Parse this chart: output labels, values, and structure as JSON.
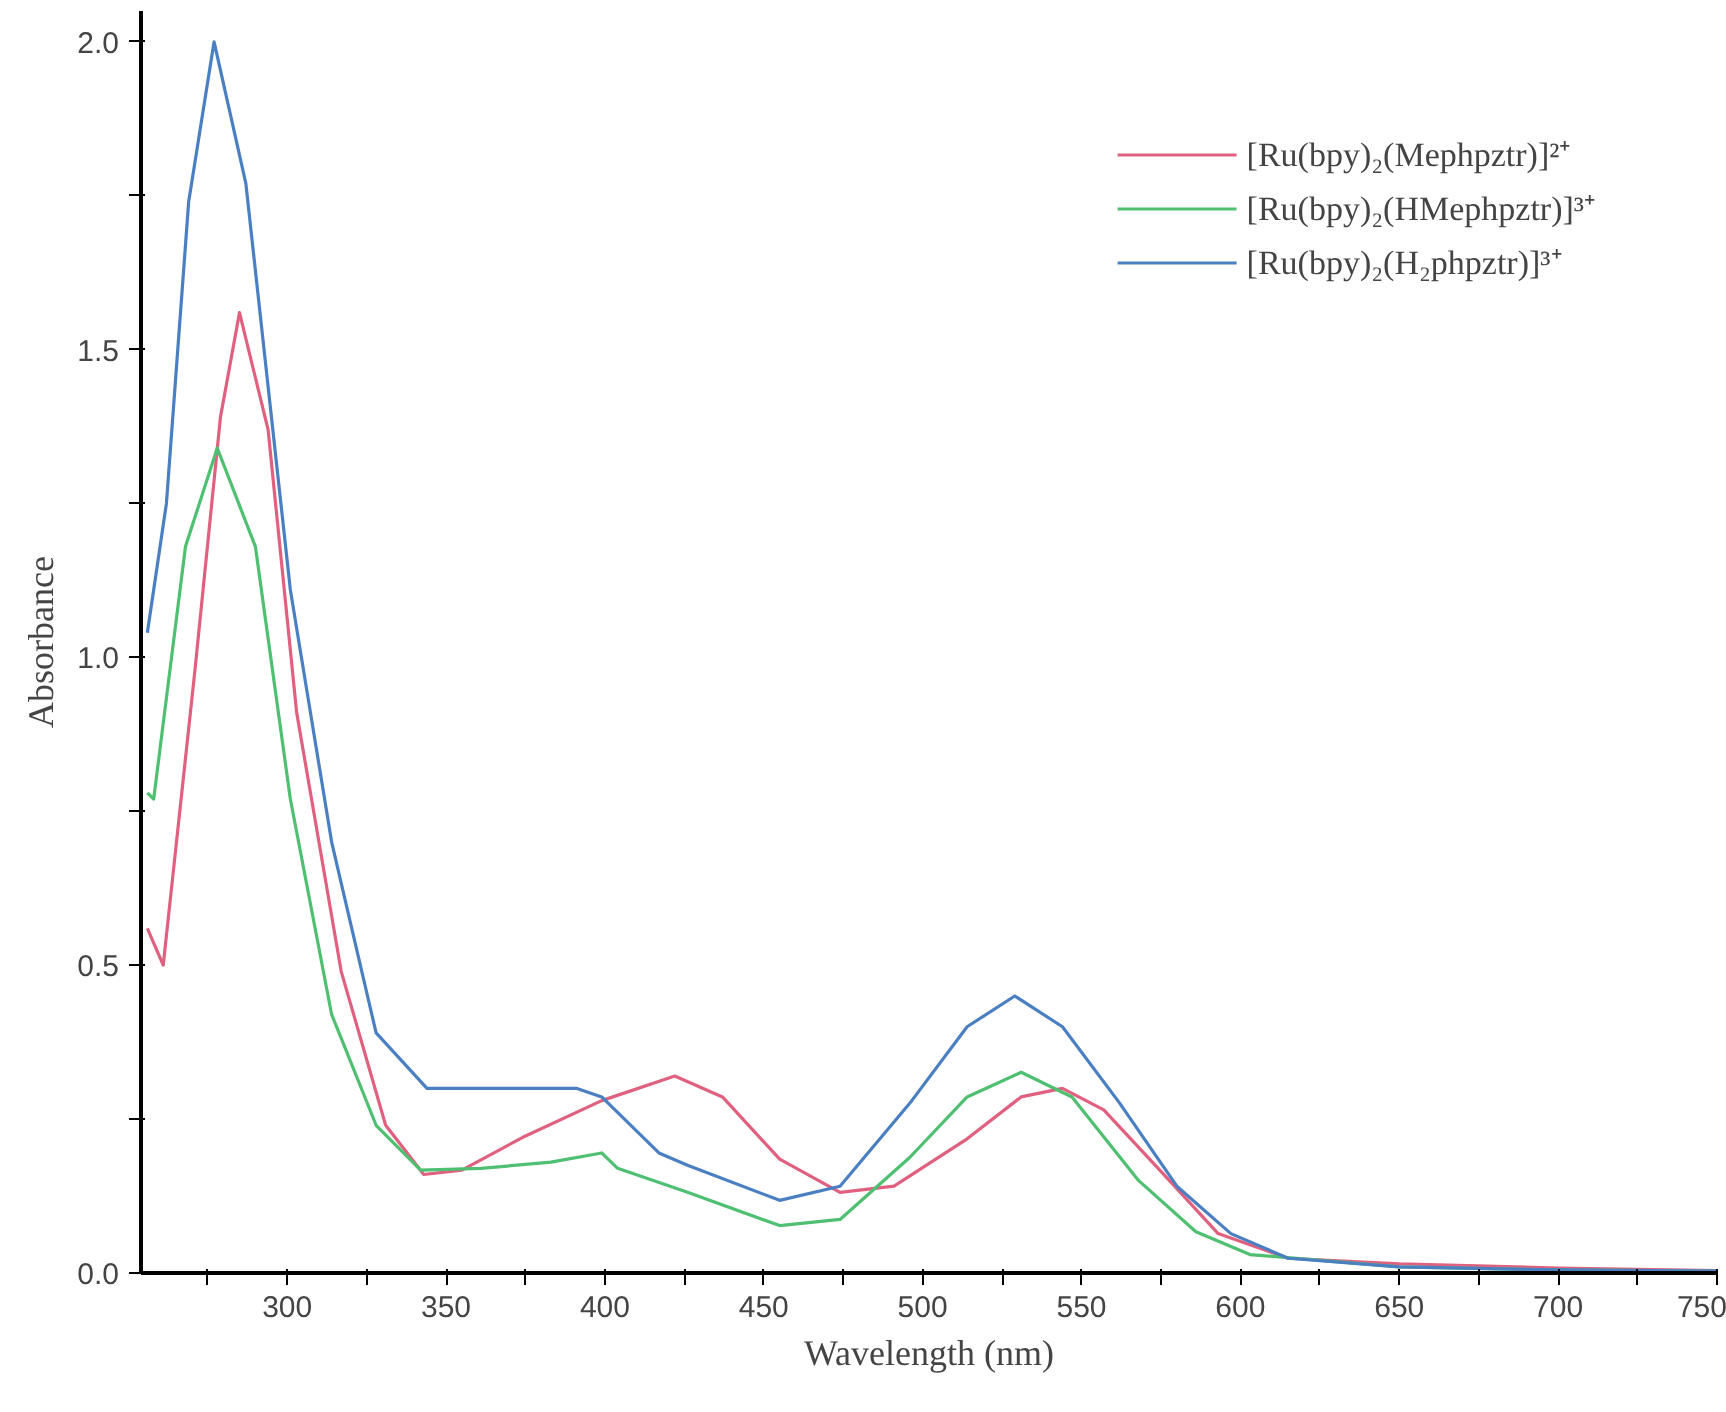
{
  "chart_data": {
    "type": "line",
    "xlabel": "Wavelength (nm)",
    "ylabel": "Absorbance",
    "xlim": [
      254,
      750
    ],
    "ylim": [
      0,
      2.05
    ],
    "xticks": [
      {
        "value": 275,
        "label": null
      },
      300,
      {
        "value": 325,
        "label": null
      },
      350,
      {
        "value": 375,
        "label": null
      },
      400,
      {
        "value": 425,
        "label": null
      },
      450,
      {
        "value": 475,
        "label": null
      },
      500,
      {
        "value": 525,
        "label": null
      },
      550,
      {
        "value": 575,
        "label": null
      },
      600,
      {
        "value": 625,
        "label": null
      },
      650,
      {
        "value": 675,
        "label": null
      },
      700,
      {
        "value": 725,
        "label": null
      },
      750
    ],
    "yticks": [
      {
        "value": 0,
        "label": "0.0"
      },
      {
        "value": 0.25,
        "label": null
      },
      {
        "value": 0.5,
        "label": "0.5"
      },
      {
        "value": 0.75,
        "label": null
      },
      {
        "value": 1,
        "label": "1.0"
      },
      {
        "value": 1.25,
        "label": null
      },
      {
        "value": 1.5,
        "label": "1.5"
      },
      {
        "value": 1.75,
        "label": null
      },
      {
        "value": 2,
        "label": "2.0"
      }
    ],
    "grid": false,
    "legend": "top right",
    "marker": "none",
    "line_style": "solid",
    "series": [
      {
        "name": "[Ru(bpy)₂(Mephpztr)]²⁺",
        "color": "#e0607f",
        "x": [
          256,
          261,
          271,
          279,
          285,
          294,
          303,
          317,
          331,
          343,
          355,
          374,
          399,
          422,
          437,
          455,
          474,
          491,
          514,
          531,
          544,
          557,
          575,
          593,
          615,
          650,
          700,
          750
        ],
        "values": [
          0.56,
          0.5,
          0.98,
          1.39,
          1.56,
          1.37,
          0.91,
          0.49,
          0.24,
          0.16,
          0.167,
          0.22,
          0.28,
          0.32,
          0.286,
          0.185,
          0.131,
          0.141,
          0.218,
          0.286,
          0.3,
          0.265,
          0.165,
          0.064,
          0.024,
          0.015,
          0.008,
          0.004
        ]
      },
      {
        "name": "[Ru(bpy)₂(HMephpztr)]³⁺",
        "color": "#4fbf72",
        "x": [
          256,
          258,
          268,
          278,
          290,
          301,
          314,
          328,
          342,
          361,
          383,
          399,
          404,
          426,
          455,
          474,
          496,
          514,
          531,
          547,
          568,
          586,
          603,
          650,
          700,
          750
        ],
        "values": [
          0.78,
          0.77,
          1.18,
          1.34,
          1.18,
          0.77,
          0.42,
          0.24,
          0.167,
          0.17,
          0.18,
          0.195,
          0.17,
          0.131,
          0.077,
          0.087,
          0.188,
          0.286,
          0.326,
          0.286,
          0.15,
          0.067,
          0.03,
          0.01,
          0.005,
          0.003
        ]
      },
      {
        "name": "[Ru(bpy)₂(H₂phpztr)]³⁺",
        "color": "#4a80c2",
        "x": [
          256,
          262,
          269,
          277,
          287,
          301,
          314,
          328,
          344,
          364,
          391,
          399,
          417,
          426,
          455,
          474,
          496,
          514,
          529,
          544,
          562,
          580,
          597,
          615,
          650,
          700,
          750
        ],
        "values": [
          1.04,
          1.25,
          1.74,
          2.0,
          1.77,
          1.11,
          0.7,
          0.39,
          0.3,
          0.3,
          0.3,
          0.286,
          0.195,
          0.175,
          0.118,
          0.141,
          0.276,
          0.4,
          0.45,
          0.4,
          0.276,
          0.141,
          0.064,
          0.024,
          0.01,
          0.005,
          0.003
        ]
      }
    ]
  }
}
